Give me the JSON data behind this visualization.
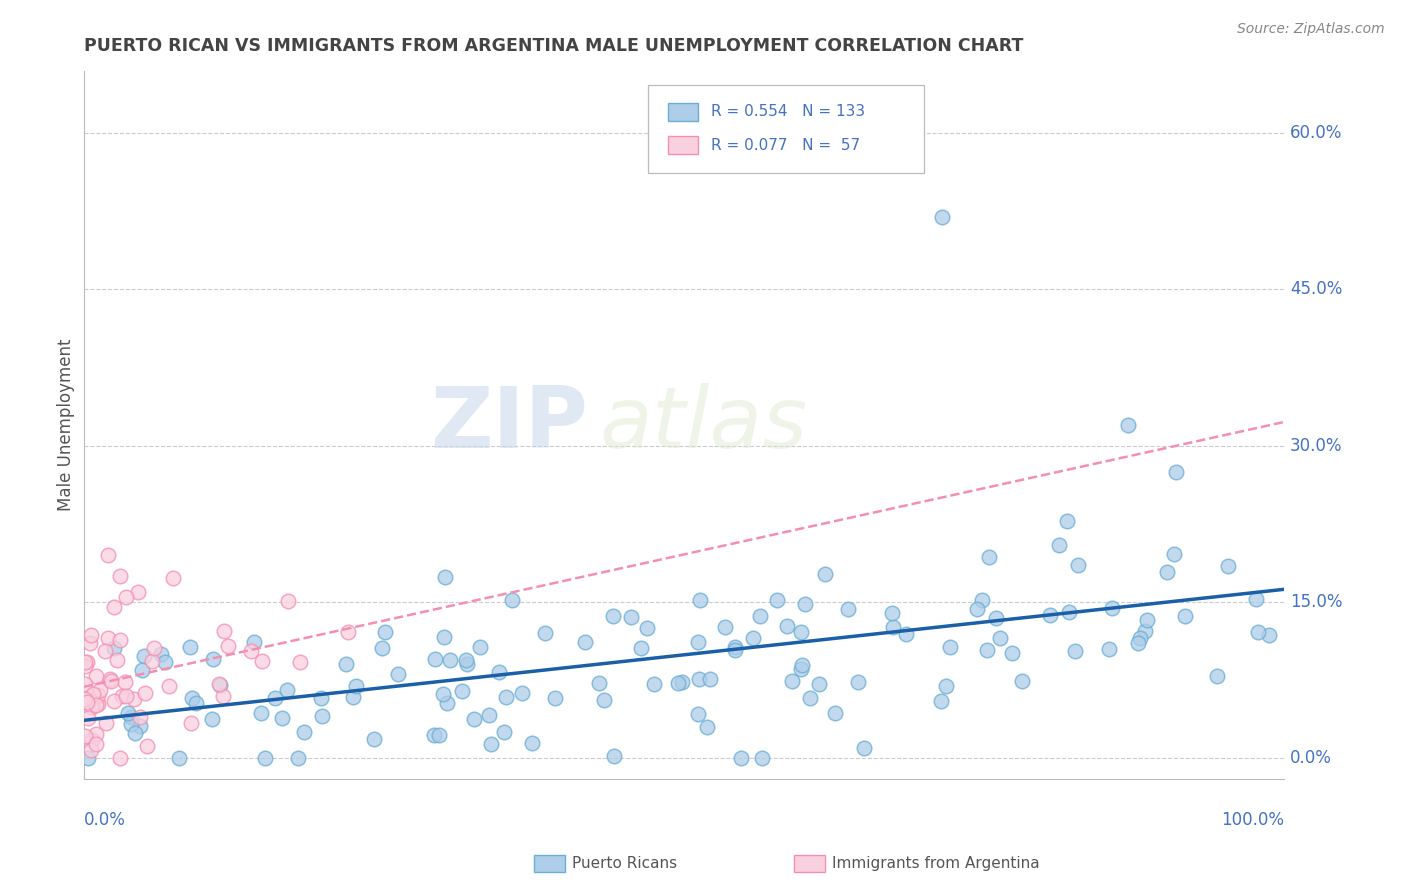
{
  "title": "PUERTO RICAN VS IMMIGRANTS FROM ARGENTINA MALE UNEMPLOYMENT CORRELATION CHART",
  "source": "Source: ZipAtlas.com",
  "ylabel": "Male Unemployment",
  "ytick_labels": [
    "0.0%",
    "15.0%",
    "30.0%",
    "45.0%",
    "60.0%"
  ],
  "ytick_values": [
    0.0,
    0.15,
    0.3,
    0.45,
    0.6
  ],
  "xlim": [
    0.0,
    1.0
  ],
  "ylim": [
    -0.02,
    0.66
  ],
  "pr_color": "#6aaed6",
  "pr_color_fill": "#aecde8",
  "arg_color": "#f48fb1",
  "arg_color_fill": "#f9d0df",
  "pr_R": 0.554,
  "pr_N": 133,
  "arg_R": 0.077,
  "arg_N": 57,
  "legend_pr": "Puerto Ricans",
  "legend_arg": "Immigrants from Argentina",
  "watermark_zip": "ZIP",
  "watermark_atlas": "atlas",
  "background_color": "#ffffff",
  "grid_color": "#cccccc",
  "title_color": "#444444",
  "axis_label_color": "#4472c4",
  "axis_text_color": "#555555"
}
